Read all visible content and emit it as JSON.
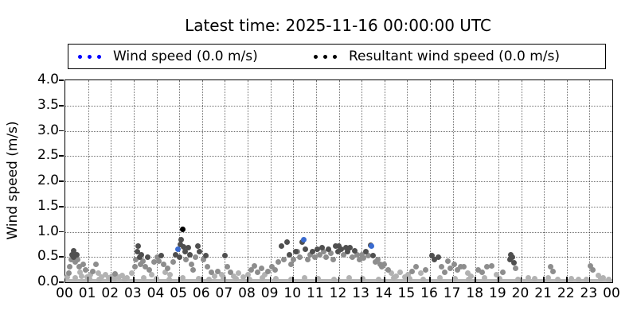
{
  "title": "Latest time: 2025-11-16 00:00:00 UTC",
  "legend": {
    "items": [
      {
        "label": "Wind speed (0.0 m/s)",
        "color": "#0000ff"
      },
      {
        "label": "Resultant wind speed (0.0 m/s)",
        "color": "#000000"
      }
    ]
  },
  "axes": {
    "ylabel": "Wind speed (m/s)",
    "y_ticks": [
      "0.0",
      "0.5",
      "1.0",
      "1.5",
      "2.0",
      "2.5",
      "3.0",
      "3.5",
      "4.0"
    ],
    "x_ticks": [
      "00",
      "01",
      "02",
      "03",
      "04",
      "05",
      "06",
      "07",
      "08",
      "09",
      "10",
      "11",
      "12",
      "13",
      "14",
      "15",
      "16",
      "17",
      "18",
      "19",
      "20",
      "21",
      "22",
      "23",
      "00"
    ]
  },
  "chart_data": {
    "type": "scatter",
    "title": "Latest time: 2025-11-16 00:00:00 UTC",
    "xlabel": "",
    "ylabel": "Wind speed (m/s)",
    "xlim": [
      0,
      24
    ],
    "ylim": [
      0,
      4.0
    ],
    "grid": true,
    "legend_position": "top",
    "series_note": "points are [hour_utc, wind_speed_m_per_s, shade]; shades L=light gray (oldest), M=mid gray, D=dark gray (recent), B=blue wind-speed highlight, K=black resultant-wind-speed highlight",
    "shade_colors": {
      "L": "#b2b2b2",
      "M": "#8d8d8d",
      "D": "#4f4f4f",
      "B": "#3a6bd0",
      "K": "#000000"
    },
    "baseline_band": {
      "y_max": 0.06,
      "color": "#b8b8b8",
      "note": "dense overlapping near-zero samples across all 24 hours"
    },
    "points": [
      [
        0.08,
        0.1,
        "L"
      ],
      [
        0.15,
        0.18,
        "M"
      ],
      [
        0.2,
        0.3,
        "M"
      ],
      [
        0.25,
        0.45,
        "M"
      ],
      [
        0.3,
        0.55,
        "D"
      ],
      [
        0.35,
        0.62,
        "D"
      ],
      [
        0.38,
        0.5,
        "D"
      ],
      [
        0.45,
        0.4,
        "M"
      ],
      [
        0.5,
        0.55,
        "D"
      ],
      [
        0.55,
        0.45,
        "M"
      ],
      [
        0.6,
        0.3,
        "M"
      ],
      [
        0.65,
        0.2,
        "L"
      ],
      [
        0.72,
        0.12,
        "L"
      ],
      [
        0.8,
        0.35,
        "M"
      ],
      [
        0.9,
        0.25,
        "M"
      ],
      [
        0.97,
        0.1,
        "L"
      ],
      [
        1.1,
        0.15,
        "L"
      ],
      [
        1.2,
        0.22,
        "M"
      ],
      [
        1.33,
        0.35,
        "M"
      ],
      [
        1.45,
        0.18,
        "L"
      ],
      [
        1.6,
        0.1,
        "L"
      ],
      [
        1.75,
        0.15,
        "L"
      ],
      [
        1.9,
        0.08,
        "L"
      ],
      [
        2.05,
        0.12,
        "L"
      ],
      [
        2.2,
        0.17,
        "M"
      ],
      [
        2.35,
        0.1,
        "L"
      ],
      [
        2.5,
        0.14,
        "L"
      ],
      [
        2.7,
        0.08,
        "L"
      ],
      [
        2.9,
        0.18,
        "L"
      ],
      [
        3.05,
        0.3,
        "M"
      ],
      [
        3.1,
        0.45,
        "M"
      ],
      [
        3.15,
        0.6,
        "D"
      ],
      [
        3.2,
        0.72,
        "D"
      ],
      [
        3.25,
        0.5,
        "D"
      ],
      [
        3.3,
        0.35,
        "M"
      ],
      [
        3.35,
        0.55,
        "D"
      ],
      [
        3.42,
        0.42,
        "M"
      ],
      [
        3.5,
        0.3,
        "M"
      ],
      [
        3.6,
        0.5,
        "D"
      ],
      [
        3.7,
        0.25,
        "M"
      ],
      [
        3.8,
        0.15,
        "L"
      ],
      [
        3.9,
        0.4,
        "M"
      ],
      [
        4.05,
        0.5,
        "M"
      ],
      [
        4.12,
        0.42,
        "M"
      ],
      [
        4.2,
        0.52,
        "D"
      ],
      [
        4.3,
        0.35,
        "M"
      ],
      [
        4.4,
        0.2,
        "L"
      ],
      [
        4.5,
        0.28,
        "M"
      ],
      [
        4.6,
        0.15,
        "L"
      ],
      [
        4.75,
        0.4,
        "M"
      ],
      [
        4.85,
        0.55,
        "D"
      ],
      [
        4.95,
        0.65,
        "B"
      ],
      [
        5.0,
        0.5,
        "D"
      ],
      [
        5.05,
        0.75,
        "D"
      ],
      [
        5.1,
        0.85,
        "D"
      ],
      [
        5.16,
        1.05,
        "K"
      ],
      [
        5.2,
        0.7,
        "D"
      ],
      [
        5.25,
        0.6,
        "D"
      ],
      [
        5.3,
        0.45,
        "M"
      ],
      [
        5.38,
        0.68,
        "D"
      ],
      [
        5.45,
        0.55,
        "D"
      ],
      [
        5.52,
        0.35,
        "M"
      ],
      [
        5.6,
        0.25,
        "M"
      ],
      [
        5.7,
        0.5,
        "M"
      ],
      [
        5.8,
        0.72,
        "D"
      ],
      [
        5.9,
        0.6,
        "D"
      ],
      [
        6.05,
        0.45,
        "M"
      ],
      [
        6.15,
        0.53,
        "D"
      ],
      [
        6.25,
        0.3,
        "M"
      ],
      [
        6.4,
        0.2,
        "M"
      ],
      [
        6.55,
        0.12,
        "L"
      ],
      [
        6.7,
        0.22,
        "M"
      ],
      [
        6.85,
        0.15,
        "L"
      ],
      [
        7.0,
        0.53,
        "D"
      ],
      [
        7.12,
        0.3,
        "M"
      ],
      [
        7.25,
        0.2,
        "M"
      ],
      [
        7.4,
        0.12,
        "L"
      ],
      [
        7.6,
        0.18,
        "L"
      ],
      [
        7.8,
        0.1,
        "L"
      ],
      [
        8.0,
        0.15,
        "L"
      ],
      [
        8.15,
        0.25,
        "M"
      ],
      [
        8.3,
        0.32,
        "M"
      ],
      [
        8.45,
        0.2,
        "M"
      ],
      [
        8.6,
        0.28,
        "M"
      ],
      [
        8.75,
        0.15,
        "L"
      ],
      [
        8.9,
        0.22,
        "M"
      ],
      [
        9.05,
        0.3,
        "M"
      ],
      [
        9.2,
        0.25,
        "M"
      ],
      [
        9.35,
        0.4,
        "M"
      ],
      [
        9.5,
        0.72,
        "D"
      ],
      [
        9.6,
        0.45,
        "M"
      ],
      [
        9.72,
        0.8,
        "D"
      ],
      [
        9.82,
        0.55,
        "D"
      ],
      [
        9.92,
        0.35,
        "M"
      ],
      [
        10.0,
        0.45,
        "M"
      ],
      [
        10.1,
        0.6,
        "D"
      ],
      [
        10.2,
        0.61,
        "M"
      ],
      [
        10.3,
        0.5,
        "M"
      ],
      [
        10.4,
        0.8,
        "D"
      ],
      [
        10.46,
        0.85,
        "B"
      ],
      [
        10.55,
        0.65,
        "D"
      ],
      [
        10.65,
        0.45,
        "M"
      ],
      [
        10.75,
        0.55,
        "M"
      ],
      [
        10.85,
        0.6,
        "D"
      ],
      [
        10.95,
        0.5,
        "M"
      ],
      [
        11.05,
        0.65,
        "D"
      ],
      [
        11.15,
        0.55,
        "M"
      ],
      [
        11.25,
        0.69,
        "D"
      ],
      [
        11.35,
        0.6,
        "M"
      ],
      [
        11.45,
        0.5,
        "M"
      ],
      [
        11.55,
        0.66,
        "D"
      ],
      [
        11.65,
        0.58,
        "M"
      ],
      [
        11.75,
        0.45,
        "M"
      ],
      [
        11.85,
        0.72,
        "D"
      ],
      [
        11.95,
        0.6,
        "D"
      ],
      [
        12.0,
        0.72,
        "D"
      ],
      [
        12.1,
        0.65,
        "D"
      ],
      [
        12.2,
        0.55,
        "M"
      ],
      [
        12.3,
        0.69,
        "D"
      ],
      [
        12.4,
        0.6,
        "D"
      ],
      [
        12.5,
        0.68,
        "D"
      ],
      [
        12.6,
        0.5,
        "M"
      ],
      [
        12.7,
        0.62,
        "D"
      ],
      [
        12.8,
        0.55,
        "M"
      ],
      [
        12.9,
        0.45,
        "M"
      ],
      [
        13.0,
        0.55,
        "M"
      ],
      [
        13.1,
        0.48,
        "M"
      ],
      [
        13.2,
        0.6,
        "D"
      ],
      [
        13.3,
        0.52,
        "M"
      ],
      [
        13.42,
        0.72,
        "B"
      ],
      [
        13.38,
        0.74,
        "D"
      ],
      [
        13.5,
        0.53,
        "D"
      ],
      [
        13.6,
        0.4,
        "M"
      ],
      [
        13.7,
        0.45,
        "M"
      ],
      [
        13.8,
        0.35,
        "M"
      ],
      [
        13.9,
        0.3,
        "M"
      ],
      [
        14.0,
        0.35,
        "M"
      ],
      [
        14.15,
        0.25,
        "M"
      ],
      [
        14.3,
        0.18,
        "L"
      ],
      [
        14.5,
        0.12,
        "L"
      ],
      [
        14.7,
        0.2,
        "L"
      ],
      [
        14.9,
        0.1,
        "L"
      ],
      [
        15.05,
        0.15,
        "L"
      ],
      [
        15.2,
        0.22,
        "M"
      ],
      [
        15.4,
        0.3,
        "M"
      ],
      [
        15.6,
        0.18,
        "L"
      ],
      [
        15.8,
        0.25,
        "M"
      ],
      [
        16.1,
        0.53,
        "D"
      ],
      [
        16.2,
        0.45,
        "D"
      ],
      [
        16.35,
        0.5,
        "D"
      ],
      [
        16.5,
        0.3,
        "M"
      ],
      [
        16.65,
        0.2,
        "M"
      ],
      [
        16.8,
        0.41,
        "M"
      ],
      [
        16.9,
        0.28,
        "M"
      ],
      [
        17.05,
        0.35,
        "M"
      ],
      [
        17.2,
        0.25,
        "M"
      ],
      [
        17.35,
        0.3,
        "M"
      ],
      [
        17.5,
        0.3,
        "M"
      ],
      [
        17.65,
        0.18,
        "L"
      ],
      [
        17.8,
        0.12,
        "L"
      ],
      [
        18.1,
        0.25,
        "M"
      ],
      [
        18.3,
        0.2,
        "M"
      ],
      [
        18.5,
        0.3,
        "M"
      ],
      [
        18.7,
        0.33,
        "M"
      ],
      [
        18.9,
        0.15,
        "L"
      ],
      [
        19.2,
        0.19,
        "M"
      ],
      [
        19.5,
        0.45,
        "D"
      ],
      [
        19.55,
        0.55,
        "D"
      ],
      [
        19.62,
        0.49,
        "D"
      ],
      [
        19.68,
        0.38,
        "D"
      ],
      [
        19.75,
        0.28,
        "M"
      ],
      [
        20.3,
        0.08,
        "L"
      ],
      [
        21.2,
        0.09,
        "L"
      ],
      [
        21.3,
        0.3,
        "M"
      ],
      [
        21.38,
        0.22,
        "M"
      ],
      [
        22.5,
        0.05,
        "L"
      ],
      [
        23.05,
        0.33,
        "M"
      ],
      [
        23.15,
        0.25,
        "M"
      ],
      [
        23.4,
        0.14,
        "L"
      ],
      [
        23.6,
        0.08,
        "L"
      ],
      [
        0.42,
        0.08,
        "L"
      ],
      [
        1.05,
        0.07,
        "L"
      ],
      [
        1.5,
        0.06,
        "L"
      ],
      [
        2.15,
        0.07,
        "L"
      ],
      [
        2.6,
        0.06,
        "L"
      ],
      [
        3.45,
        0.08,
        "L"
      ],
      [
        4.0,
        0.07,
        "L"
      ],
      [
        4.55,
        0.06,
        "L"
      ],
      [
        5.15,
        0.08,
        "L"
      ],
      [
        5.85,
        0.07,
        "L"
      ],
      [
        6.3,
        0.06,
        "L"
      ],
      [
        6.95,
        0.08,
        "L"
      ],
      [
        7.5,
        0.07,
        "L"
      ],
      [
        8.1,
        0.06,
        "L"
      ],
      [
        8.65,
        0.08,
        "L"
      ],
      [
        9.25,
        0.07,
        "L"
      ],
      [
        9.9,
        0.06,
        "L"
      ],
      [
        10.5,
        0.08,
        "L"
      ],
      [
        11.1,
        0.07,
        "L"
      ],
      [
        11.8,
        0.06,
        "L"
      ],
      [
        12.45,
        0.08,
        "L"
      ],
      [
        13.05,
        0.07,
        "L"
      ],
      [
        13.75,
        0.06,
        "L"
      ],
      [
        14.4,
        0.08,
        "L"
      ],
      [
        15.1,
        0.07,
        "L"
      ],
      [
        15.7,
        0.06,
        "L"
      ],
      [
        16.45,
        0.08,
        "L"
      ],
      [
        17.1,
        0.07,
        "L"
      ],
      [
        17.7,
        0.06,
        "L"
      ],
      [
        18.4,
        0.08,
        "L"
      ],
      [
        19.05,
        0.07,
        "L"
      ],
      [
        19.85,
        0.06,
        "L"
      ],
      [
        20.6,
        0.07,
        "L"
      ],
      [
        21.6,
        0.06,
        "L"
      ],
      [
        22.2,
        0.07,
        "L"
      ],
      [
        22.85,
        0.06,
        "L"
      ],
      [
        23.5,
        0.07,
        "L"
      ],
      [
        23.85,
        0.06,
        "L"
      ]
    ]
  }
}
